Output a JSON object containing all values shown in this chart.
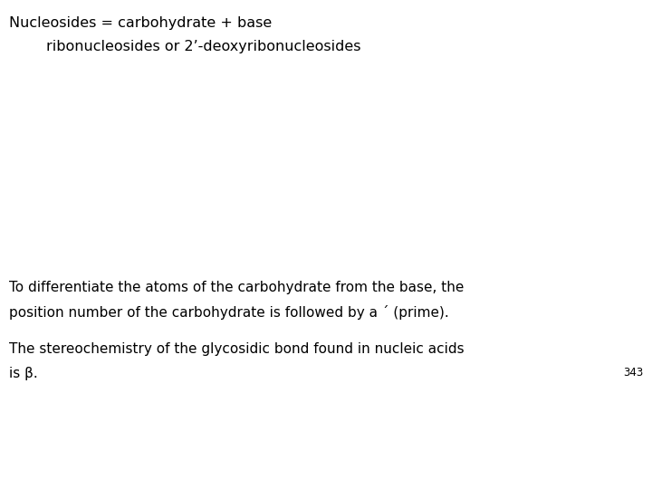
{
  "background_color": "#ffffff",
  "line1": "Nucleosides = carbohydrate + base",
  "line2": "        ribonucleosides or 2’-deoxyribonucleosides",
  "para1_line1": "To differentiate the atoms of the carbohydrate from the base, the",
  "para1_line2": "position number of the carbohydrate is followed by a ´ (prime).",
  "para2_line1": "The stereochemistry of the glycosidic bond found in nucleic acids",
  "para2_line2": "is β.",
  "page_number": "343",
  "font_size_title": 11.5,
  "font_size_body": 11.0,
  "font_size_page": 8.5,
  "text_color": "#000000"
}
